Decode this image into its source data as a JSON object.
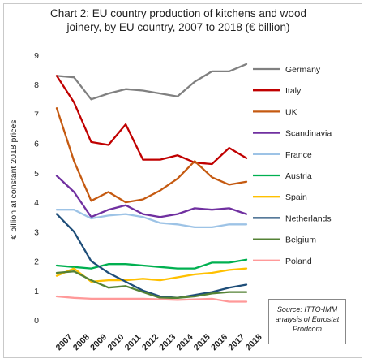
{
  "chart_data": {
    "type": "line",
    "title": "Chart 2: EU country production of kitchens and wood\njoinery, by EU country, 2007 to 2018 (€ billion)",
    "ylabel": "€ billion at constant 2018 prices",
    "xlabel": "",
    "ylim": [
      0,
      9
    ],
    "yticks": [
      "0",
      "1",
      "2",
      "3",
      "4",
      "5",
      "6",
      "7",
      "8",
      "9"
    ],
    "x": [
      "2007",
      "2008",
      "2009",
      "2010",
      "2011",
      "2012",
      "2013",
      "2014",
      "2015",
      "2016",
      "2017",
      "2018"
    ],
    "grid": false,
    "legend": "right",
    "annotation": "Source: ITTO-IMM\nanalysis of Eurostat\nProdcom",
    "series": [
      {
        "name": "Germany",
        "color": "#808080",
        "values": [
          8.3,
          8.25,
          7.5,
          7.7,
          7.85,
          7.8,
          7.7,
          7.6,
          8.1,
          8.45,
          8.45,
          8.7
        ]
      },
      {
        "name": "Italy",
        "color": "#c00000",
        "values": [
          8.3,
          7.4,
          6.05,
          5.95,
          6.65,
          5.45,
          5.45,
          5.6,
          5.35,
          5.3,
          5.85,
          5.5
        ]
      },
      {
        "name": "UK",
        "color": "#c55a11",
        "values": [
          7.2,
          5.4,
          4.05,
          4.35,
          4.0,
          4.1,
          4.4,
          4.8,
          5.4,
          4.85,
          4.6,
          4.7
        ]
      },
      {
        "name": "Scandinavia",
        "color": "#7030a0",
        "values": [
          4.9,
          4.35,
          3.5,
          3.75,
          3.9,
          3.6,
          3.5,
          3.6,
          3.8,
          3.75,
          3.8,
          3.6
        ]
      },
      {
        "name": "France",
        "color": "#9dc3e6",
        "values": [
          3.75,
          3.75,
          3.45,
          3.55,
          3.6,
          3.5,
          3.3,
          3.25,
          3.15,
          3.15,
          3.25,
          3.25
        ]
      },
      {
        "name": "Austria",
        "color": "#00b050",
        "values": [
          1.85,
          1.8,
          1.75,
          1.9,
          1.9,
          1.85,
          1.8,
          1.75,
          1.75,
          1.95,
          1.95,
          2.05
        ]
      },
      {
        "name": "Spain",
        "color": "#ffc000",
        "values": [
          1.5,
          1.75,
          1.3,
          1.35,
          1.35,
          1.4,
          1.35,
          1.45,
          1.55,
          1.6,
          1.7,
          1.75
        ]
      },
      {
        "name": "Netherlands",
        "color": "#1f4e79",
        "values": [
          3.6,
          3.0,
          2.0,
          1.6,
          1.3,
          1.0,
          0.8,
          0.75,
          0.85,
          0.95,
          1.1,
          1.2
        ]
      },
      {
        "name": "Belgium",
        "color": "#548235",
        "values": [
          1.6,
          1.65,
          1.35,
          1.1,
          1.15,
          0.95,
          0.75,
          0.75,
          0.8,
          0.9,
          0.95,
          0.95
        ]
      },
      {
        "name": "Poland",
        "color": "#ff9999",
        "values": [
          0.8,
          0.75,
          0.72,
          0.72,
          0.72,
          0.72,
          0.7,
          0.68,
          0.7,
          0.72,
          0.62,
          0.62
        ]
      }
    ]
  }
}
